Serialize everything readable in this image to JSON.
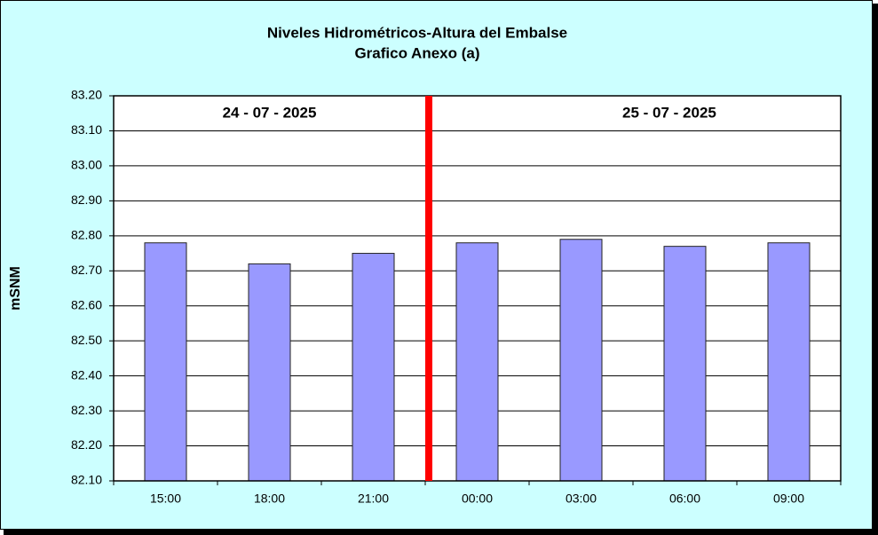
{
  "chart_data": {
    "type": "bar",
    "title": "Niveles Hidrométricos-Altura del Embalse",
    "subtitle": "Grafico Anexo (a)",
    "y_label": "mSNM",
    "annotations": [
      "24 - 07 - 2025",
      "25 - 07 - 2025"
    ],
    "categories": [
      "15:00",
      "18:00",
      "21:00",
      "00:00",
      "03:00",
      "06:00",
      "09:00"
    ],
    "values": [
      82.78,
      82.72,
      82.75,
      82.78,
      82.79,
      82.77,
      82.78
    ],
    "color": "#9999ff",
    "ylim": [
      82.1,
      83.2
    ],
    "yticks": [
      {
        "value": 82.1,
        "label": "82.10"
      },
      {
        "value": 82.2,
        "label": "82.20"
      },
      {
        "value": 82.3,
        "label": "82.30"
      },
      {
        "value": 82.4,
        "label": "82.40"
      },
      {
        "value": 82.5,
        "label": "82.50"
      },
      {
        "value": 82.6,
        "label": "82.60"
      },
      {
        "value": 82.7,
        "label": "82.70"
      },
      {
        "value": 82.8,
        "label": "82.80"
      },
      {
        "value": 82.9,
        "label": "82.90"
      },
      {
        "value": 83.0,
        "label": "83.00"
      },
      {
        "value": 83.1,
        "label": "83.10"
      },
      {
        "value": 83.2,
        "label": "83.20"
      }
    ],
    "grid": true
  }
}
